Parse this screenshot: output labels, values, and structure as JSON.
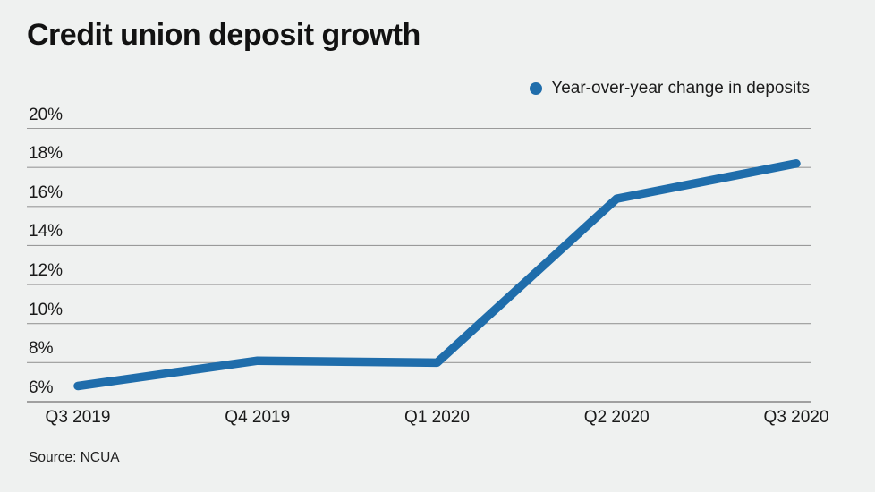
{
  "header": {
    "title": "Credit union deposit growth"
  },
  "legend": {
    "label": "Year-over-year change in deposits"
  },
  "source": {
    "text": "Source: NCUA"
  },
  "colors": {
    "background": "#eff1f0",
    "line": "#1f6dab",
    "grid": "#9a9a9a",
    "baseline": "#858585",
    "text": "#1a1a1a"
  },
  "chart_data": {
    "type": "line",
    "title": "Credit union deposit growth",
    "categories": [
      "Q3 2019",
      "Q4 2019",
      "Q1 2020",
      "Q2 2020",
      "Q3 2020"
    ],
    "series": [
      {
        "name": "Year-over-year change in deposits",
        "values": [
          6.8,
          8.1,
          8.0,
          16.4,
          18.2
        ]
      }
    ],
    "xlabel": "",
    "ylabel": "",
    "ylim": [
      6,
      20
    ],
    "ytick_step": 2,
    "ytick_labels": [
      "6%",
      "8%",
      "10%",
      "12%",
      "14%",
      "16%",
      "18%",
      "20%"
    ],
    "grid": true,
    "legend_position": "top-right"
  }
}
